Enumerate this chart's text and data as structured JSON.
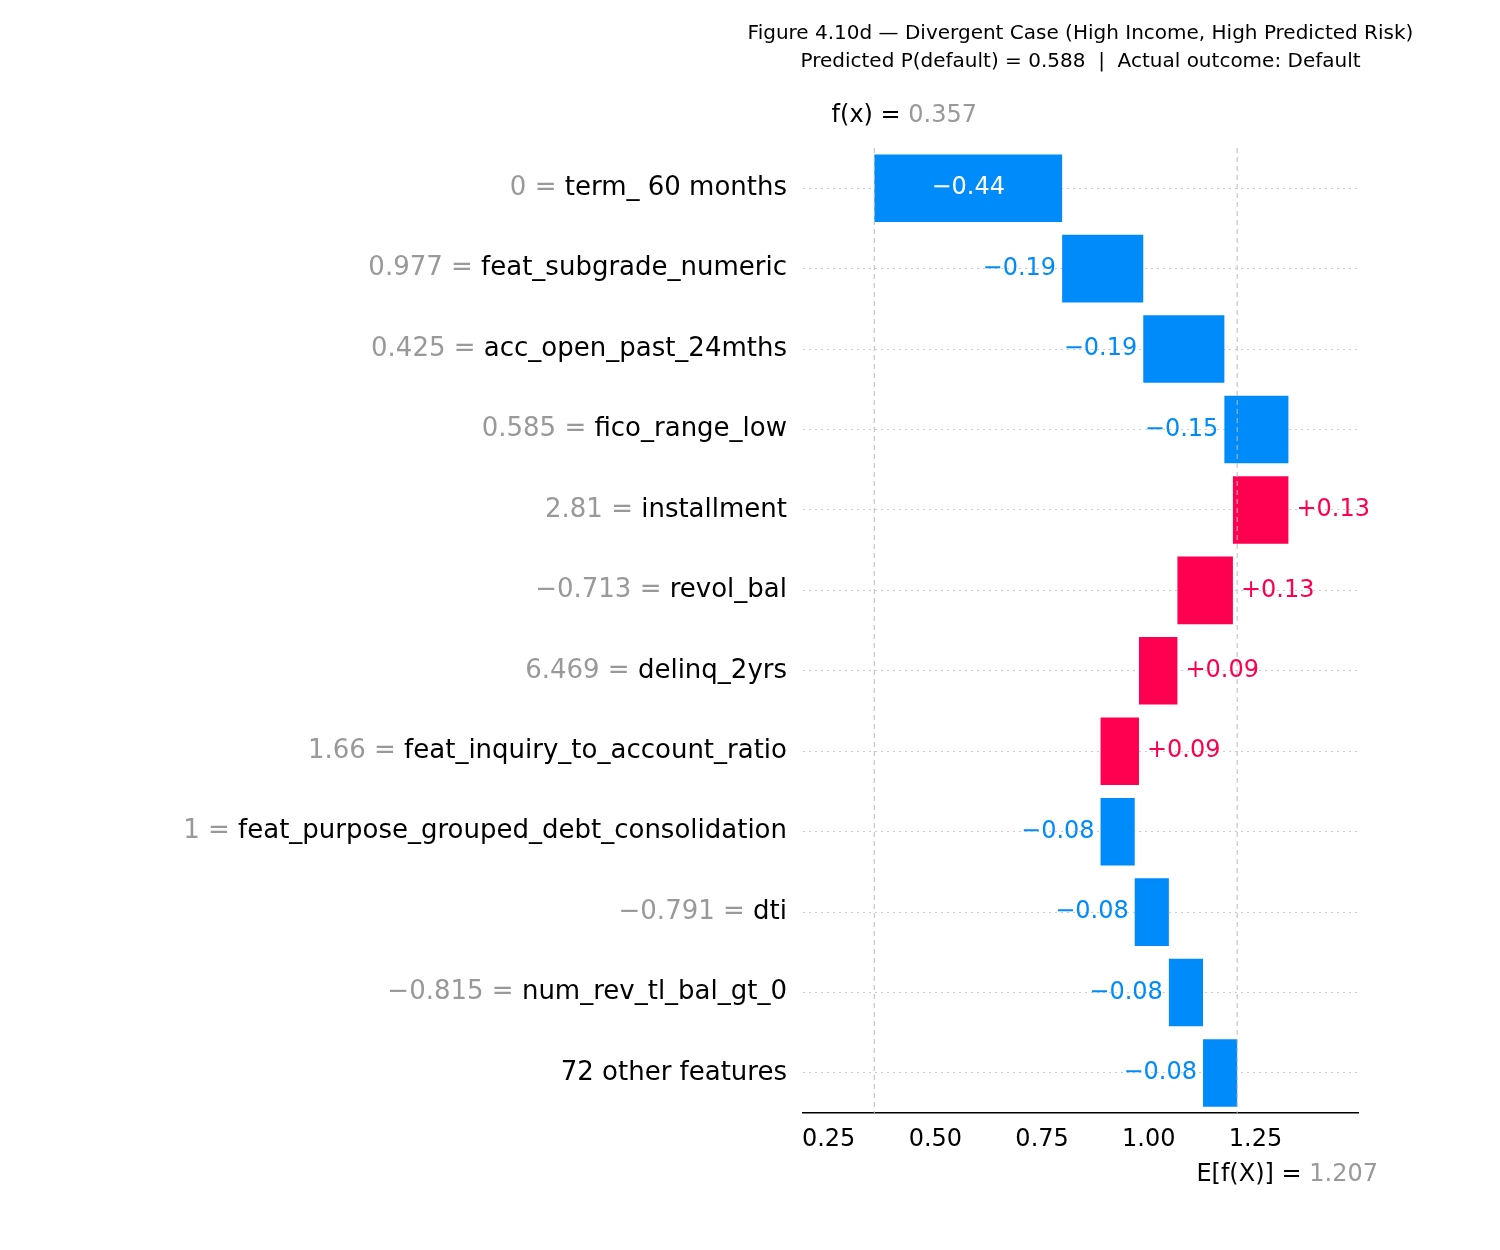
{
  "chart_data": {
    "type": "bar",
    "orientation": "horizontal",
    "title": "Figure 4.10d — Divergent Case (High Income, High Predicted Risk)",
    "subtitle": "Predicted P(default) = 0.588  |  Actual outcome: Default",
    "categories": [
      "0 = term_ 60 months",
      "0.977 = feat_subgrade_numeric",
      "0.425 = acc_open_past_24mths",
      "0.585 = fico_range_low",
      "2.81 = installment",
      "−0.713 = revol_bal",
      "6.469 = delinq_2yrs",
      "1.66 = feat_inquiry_to_account_ratio",
      "1 = feat_purpose_grouped_debt_consolidation",
      "−0.791 = dti",
      "−0.815 = num_rev_tl_bal_gt_0",
      "72 other features"
    ],
    "values": [
      -0.44,
      -0.19,
      -0.19,
      -0.15,
      0.13,
      0.13,
      0.09,
      0.09,
      -0.08,
      -0.08,
      -0.08,
      -0.08
    ],
    "base": [
      0.797,
      0.987,
      1.177,
      1.327,
      1.197,
      1.067,
      0.977,
      0.887,
      0.967,
      1.047,
      1.127,
      1.207
    ],
    "colors": [
      "#008bfb",
      "#008bfb",
      "#008bfb",
      "#008bfb",
      "#ff0051",
      "#ff0051",
      "#ff0051",
      "#ff0051",
      "#008bfb",
      "#008bfb",
      "#008bfb",
      "#008bfb"
    ],
    "value_labels": [
      "−0.44",
      "−0.19",
      "−0.19",
      "−0.15",
      "+0.13",
      "+0.13",
      "+0.09",
      "+0.09",
      "−0.08",
      "−0.08",
      "−0.08",
      "−0.08"
    ],
    "xlim": [
      0.19,
      1.49
    ],
    "xticks": [
      {
        "value": 0.25,
        "label": "0.25"
      },
      {
        "value": 0.5,
        "label": "0.50"
      },
      {
        "value": 0.75,
        "label": "0.75"
      },
      {
        "value": 1.0,
        "label": "1.00"
      },
      {
        "value": 1.25,
        "label": "1.25"
      }
    ],
    "ref_lines": [
      {
        "axis": "x",
        "value": 0.357,
        "label": "f(x) = 0.357",
        "color": "#bbbbbb",
        "line_style": "dashed"
      },
      {
        "axis": "x",
        "value": 1.207,
        "label": "E[f(X)] = 1.207",
        "color": "#bbbbbb",
        "line_style": "dashed"
      }
    ],
    "grid": "y",
    "legend": false
  }
}
